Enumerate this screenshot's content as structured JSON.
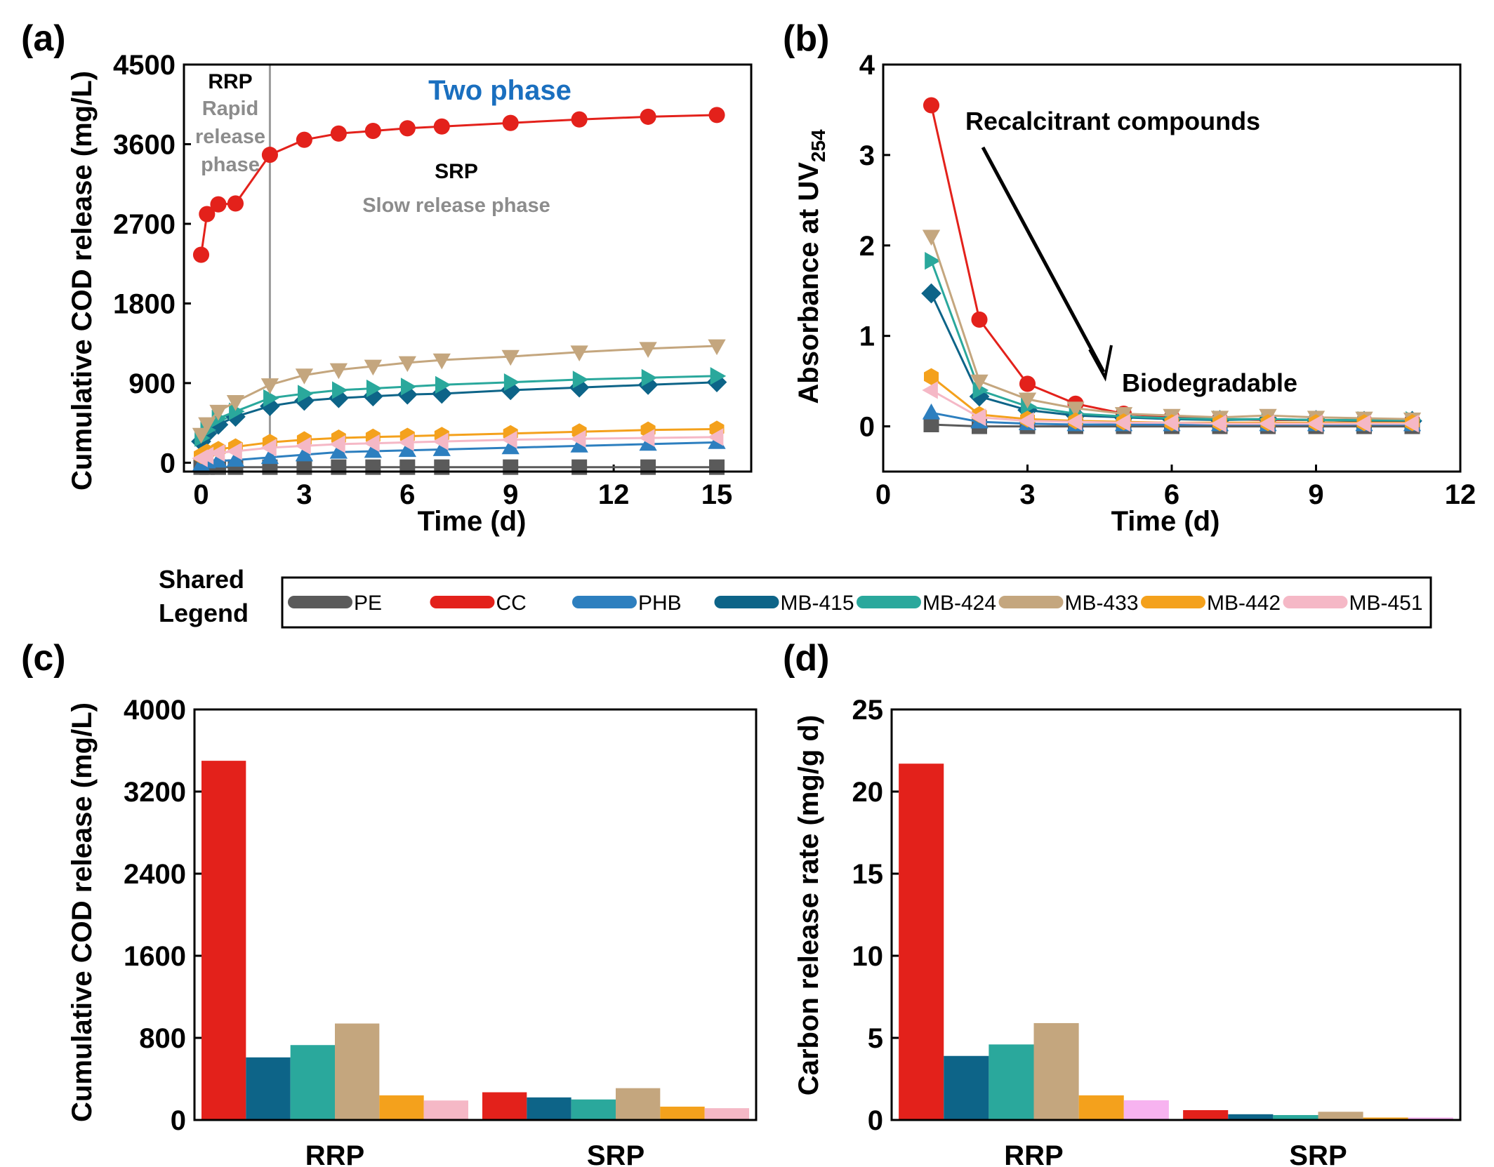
{
  "colors": {
    "PE": "#5a5a5a",
    "CC": "#e3211b",
    "PHB": "#2d7fbf",
    "MB-415": "#0d6488",
    "MB-424": "#2aa89c",
    "MB-433": "#c4a67e",
    "MB-442": "#f4a11c",
    "MB-451": "#f5b8c6",
    "two_phase_text": "#1a6fbf",
    "phase_grey": "#8c8c8c"
  },
  "legend": {
    "title_line1": "Shared",
    "title_line2": "Legend",
    "entries": [
      "PE",
      "CC",
      "PHB",
      "MB-415",
      "MB-424",
      "MB-433",
      "MB-442",
      "MB-451"
    ]
  },
  "chart_data": [
    {
      "panel": "(a)",
      "type": "line",
      "xlabel": "Time (d)",
      "ylabel": "Cumulative COD release (mg/L)",
      "xlim": [
        -0.5,
        16
      ],
      "ylim": [
        -100,
        4500
      ],
      "xticks": [
        0,
        3,
        6,
        9,
        12,
        15
      ],
      "yticks": [
        0,
        900,
        1800,
        2700,
        3600,
        4500
      ],
      "annotations": {
        "rrp": "RRP",
        "rrp_sub_1": "Rapid",
        "rrp_sub_2": "release",
        "rrp_sub_3": "phase",
        "two_phase": "Two phase",
        "srp": "SRP",
        "srp_sub": "Slow release phase",
        "divider_x": 2
      },
      "x": [
        0,
        0.17,
        0.5,
        1,
        2,
        3,
        4,
        5,
        6,
        7,
        9,
        11,
        13,
        15
      ],
      "series": [
        {
          "name": "PE",
          "marker": "square",
          "values": [
            -50,
            -50,
            -50,
            -50,
            -50,
            -50,
            -50,
            -50,
            -50,
            -50,
            -50,
            -50,
            -50,
            -50
          ]
        },
        {
          "name": "CC",
          "marker": "circle",
          "values": [
            2350,
            2810,
            2920,
            2930,
            3480,
            3650,
            3720,
            3750,
            3780,
            3800,
            3840,
            3880,
            3910,
            3930
          ]
        },
        {
          "name": "PHB",
          "marker": "triangle-up",
          "values": [
            -20,
            10,
            20,
            30,
            60,
            90,
            120,
            130,
            140,
            150,
            170,
            190,
            210,
            230
          ]
        },
        {
          "name": "MB-415",
          "marker": "diamond",
          "values": [
            240,
            330,
            430,
            520,
            640,
            700,
            730,
            750,
            770,
            780,
            820,
            850,
            880,
            910
          ]
        },
        {
          "name": "MB-424",
          "marker": "triangle-right",
          "values": [
            280,
            370,
            500,
            580,
            730,
            780,
            820,
            840,
            860,
            880,
            910,
            940,
            960,
            980
          ]
        },
        {
          "name": "MB-433",
          "marker": "triangle-down",
          "values": [
            320,
            440,
            580,
            690,
            880,
            990,
            1050,
            1090,
            1130,
            1160,
            1200,
            1250,
            1290,
            1320
          ]
        },
        {
          "name": "MB-442",
          "marker": "hexagon",
          "values": [
            80,
            120,
            150,
            180,
            230,
            260,
            280,
            290,
            300,
            310,
            330,
            350,
            370,
            380
          ]
        },
        {
          "name": "MB-451",
          "marker": "triangle-left",
          "values": [
            50,
            80,
            110,
            130,
            170,
            190,
            210,
            220,
            230,
            240,
            260,
            270,
            280,
            290
          ]
        }
      ]
    },
    {
      "panel": "(b)",
      "type": "line",
      "xlabel": "Time (d)",
      "ylabel_main": "Absorbance at UV",
      "ylabel_sub": "254",
      "xlim": [
        0,
        12
      ],
      "ylim": [
        -0.5,
        4
      ],
      "xticks": [
        0,
        3,
        6,
        9,
        12
      ],
      "yticks": [
        0,
        1,
        2,
        3,
        4
      ],
      "annotations": {
        "recalcitrant": "Recalcitrant compounds",
        "biodegradable": "Biodegradable"
      },
      "x": [
        1,
        2,
        3,
        4,
        5,
        6,
        7,
        8,
        9,
        10,
        11
      ],
      "series": [
        {
          "name": "PE",
          "marker": "square",
          "values": [
            0.02,
            0.0,
            0.0,
            0.0,
            0.0,
            0.0,
            0.0,
            0.0,
            0.0,
            0.0,
            0.0
          ]
        },
        {
          "name": "CC",
          "marker": "circle",
          "values": [
            3.55,
            1.18,
            0.47,
            0.25,
            0.14,
            0.1,
            0.08,
            0.07,
            0.07,
            0.06,
            0.06
          ]
        },
        {
          "name": "PHB",
          "marker": "triangle-up",
          "values": [
            0.15,
            0.05,
            0.03,
            0.02,
            0.02,
            0.02,
            0.02,
            0.02,
            0.02,
            0.02,
            0.02
          ]
        },
        {
          "name": "MB-415",
          "marker": "diamond",
          "values": [
            1.47,
            0.33,
            0.18,
            0.12,
            0.1,
            0.08,
            0.07,
            0.08,
            0.07,
            0.06,
            0.06
          ]
        },
        {
          "name": "MB-424",
          "marker": "triangle-right",
          "values": [
            1.83,
            0.4,
            0.22,
            0.14,
            0.11,
            0.09,
            0.08,
            0.08,
            0.07,
            0.07,
            0.07
          ]
        },
        {
          "name": "MB-433",
          "marker": "triangle-down",
          "values": [
            2.1,
            0.5,
            0.3,
            0.2,
            0.14,
            0.12,
            0.1,
            0.12,
            0.1,
            0.09,
            0.08
          ]
        },
        {
          "name": "MB-442",
          "marker": "hexagon",
          "values": [
            0.55,
            0.13,
            0.08,
            0.06,
            0.05,
            0.04,
            0.04,
            0.04,
            0.04,
            0.04,
            0.04
          ]
        },
        {
          "name": "MB-451",
          "marker": "triangle-left",
          "values": [
            0.4,
            0.1,
            0.06,
            0.05,
            0.04,
            0.04,
            0.03,
            0.03,
            0.03,
            0.03,
            0.03
          ]
        }
      ]
    },
    {
      "panel": "(c)",
      "type": "bar",
      "xlabel": "",
      "ylabel": "Cumulative COD release (mg/L)",
      "ylim": [
        0,
        4000
      ],
      "yticks": [
        0,
        800,
        1600,
        2400,
        3200,
        4000
      ],
      "categories": [
        "RRP",
        "SRP"
      ],
      "series": [
        {
          "name": "CC",
          "values": [
            3500,
            270
          ]
        },
        {
          "name": "MB-415",
          "values": [
            610,
            220
          ]
        },
        {
          "name": "MB-424",
          "values": [
            730,
            200
          ]
        },
        {
          "name": "MB-433",
          "values": [
            940,
            310
          ]
        },
        {
          "name": "MB-442",
          "values": [
            240,
            130
          ]
        },
        {
          "name": "MB-451",
          "values": [
            190,
            115
          ]
        }
      ]
    },
    {
      "panel": "(d)",
      "type": "bar",
      "xlabel": "",
      "ylabel": "Carbon release rate (mg/g d)",
      "ylim": [
        0,
        25
      ],
      "yticks": [
        0,
        5,
        10,
        15,
        20,
        25
      ],
      "categories": [
        "RRP",
        "SRP"
      ],
      "series": [
        {
          "name": "CC",
          "values": [
            21.7,
            0.6
          ]
        },
        {
          "name": "MB-415",
          "values": [
            3.9,
            0.35
          ]
        },
        {
          "name": "MB-424",
          "values": [
            4.6,
            0.3
          ]
        },
        {
          "name": "MB-433",
          "values": [
            5.9,
            0.5
          ]
        },
        {
          "name": "MB-442",
          "values": [
            1.5,
            0.15
          ]
        },
        {
          "name": "MB-451",
          "values": [
            1.2,
            0.15
          ]
        }
      ],
      "bar_colors": [
        "#e3211b",
        "#0d6488",
        "#2aa89c",
        "#c4a67e",
        "#f4a11c",
        "#f7b3f0"
      ]
    }
  ]
}
